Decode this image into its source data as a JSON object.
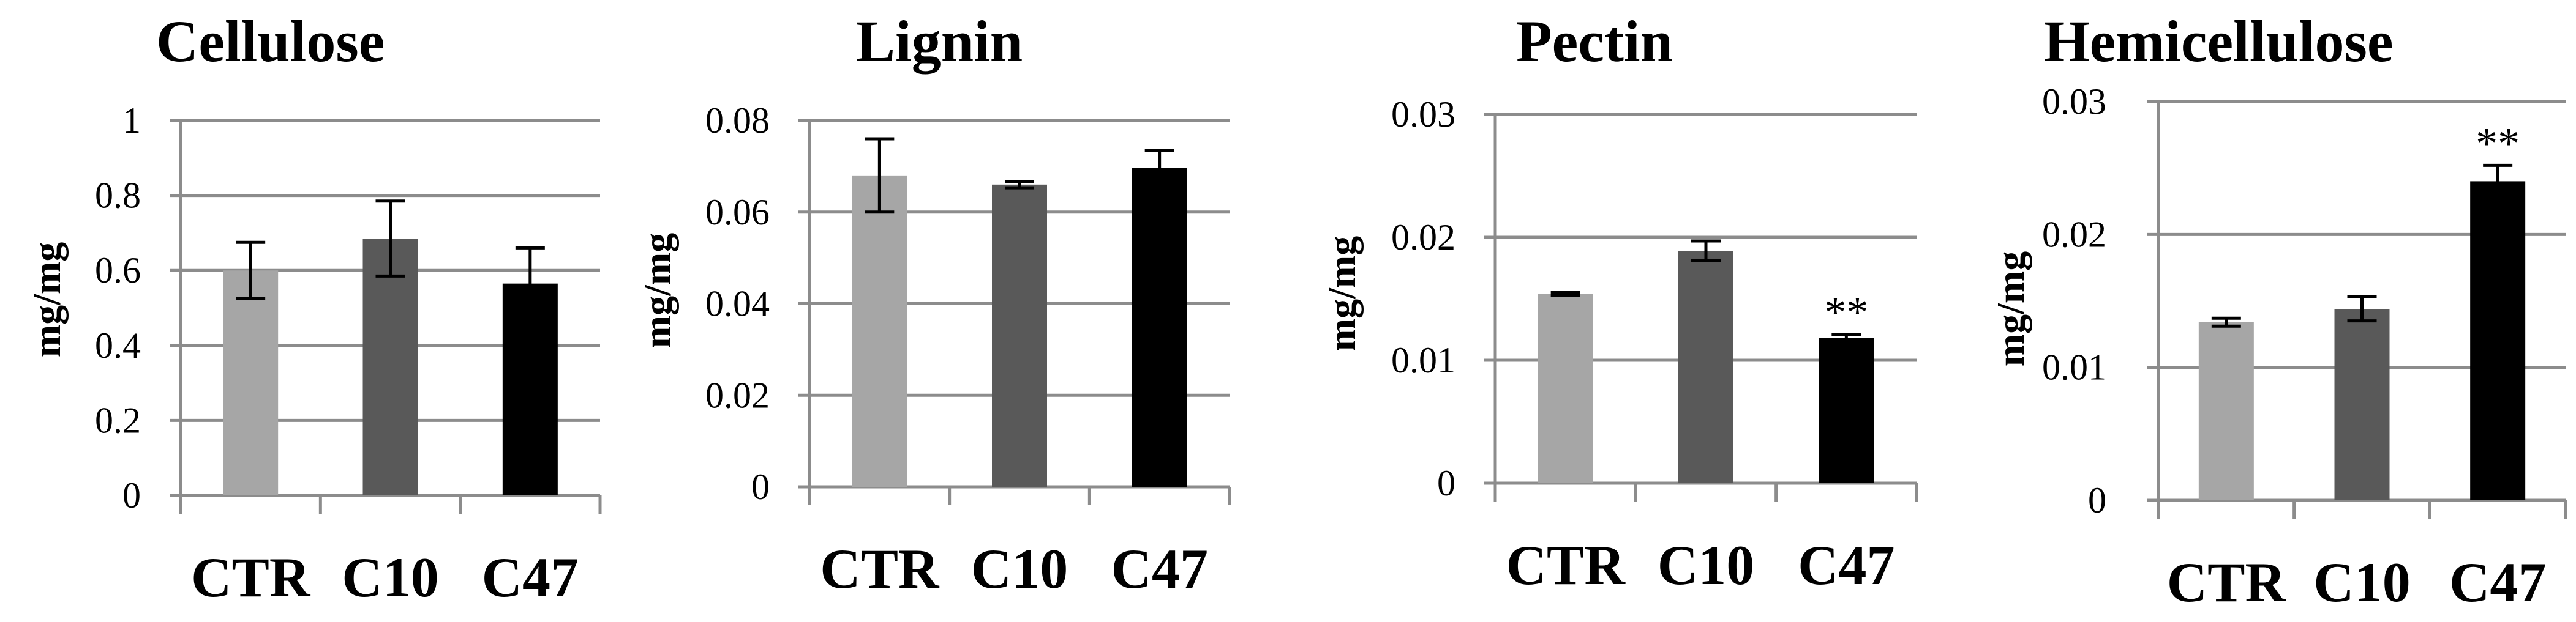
{
  "chart_data": [
    {
      "type": "bar",
      "title": "Cellulose",
      "ylabel": "mg/mg",
      "xlabel": "",
      "categories": [
        "CTR",
        "C10",
        "C47"
      ],
      "values": [
        0.6,
        0.685,
        0.565
      ],
      "errors": [
        0.075,
        0.1,
        0.095
      ],
      "annotations": [
        "",
        "",
        ""
      ],
      "ylim": [
        0,
        1
      ],
      "yticks": [
        0,
        0.2,
        0.4,
        0.6,
        0.8,
        1
      ],
      "ytick_labels": [
        "0",
        "0.2",
        "0.4",
        "0.6",
        "0.8",
        "1"
      ],
      "colors": [
        "#a6a6a6",
        "#595959",
        "#000000"
      ]
    },
    {
      "type": "bar",
      "title": "Lignin",
      "ylabel": "mg/mg",
      "xlabel": "",
      "categories": [
        "CTR",
        "C10",
        "C47"
      ],
      "values": [
        0.068,
        0.066,
        0.0697
      ],
      "errors": [
        0.008,
        0.0007,
        0.0038
      ],
      "annotations": [
        "",
        "",
        ""
      ],
      "ylim": [
        0,
        0.08
      ],
      "yticks": [
        0,
        0.02,
        0.04,
        0.06,
        0.08
      ],
      "ytick_labels": [
        "0",
        "0.02",
        "0.04",
        "0.06",
        "0.08"
      ],
      "colors": [
        "#a6a6a6",
        "#595959",
        "#000000"
      ]
    },
    {
      "type": "bar",
      "title": "Pectin",
      "ylabel": "mg/mg",
      "xlabel": "",
      "categories": [
        "CTR",
        "C10",
        "C47"
      ],
      "values": [
        0.0154,
        0.0189,
        0.0118
      ],
      "errors": [
        0.0001,
        0.0008,
        0.0003
      ],
      "annotations": [
        "",
        "",
        "**"
      ],
      "ylim": [
        0,
        0.03
      ],
      "yticks": [
        0,
        0.01,
        0.02,
        0.03
      ],
      "ytick_labels": [
        "0",
        "0.01",
        "0.02",
        "0.03"
      ],
      "colors": [
        "#a6a6a6",
        "#595959",
        "#000000"
      ]
    },
    {
      "type": "bar",
      "title": "Hemicellulose",
      "ylabel": "mg/mg",
      "xlabel": "",
      "categories": [
        "CTR",
        "C10",
        "C47"
      ],
      "values": [
        0.0134,
        0.0144,
        0.024
      ],
      "errors": [
        0.0003,
        0.0009,
        0.0012
      ],
      "annotations": [
        "",
        "",
        "**"
      ],
      "ylim": [
        0,
        0.03
      ],
      "yticks": [
        0,
        0.01,
        0.02,
        0.03
      ],
      "ytick_labels": [
        "0",
        "0.01",
        "0.02",
        "0.03"
      ],
      "colors": [
        "#a6a6a6",
        "#595959",
        "#000000"
      ]
    }
  ]
}
